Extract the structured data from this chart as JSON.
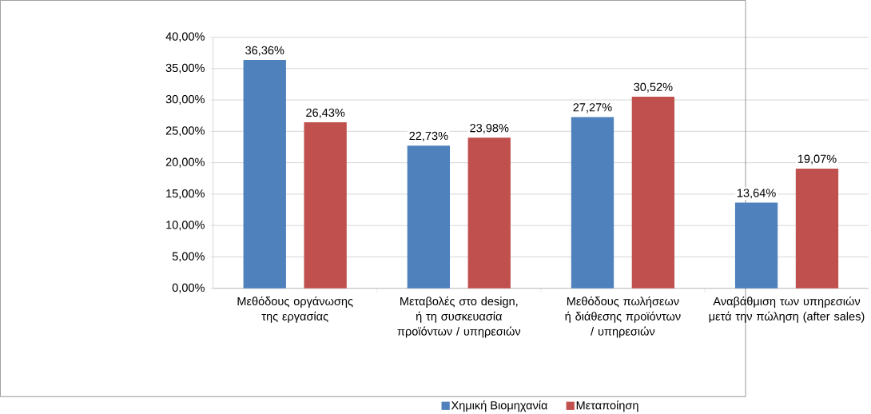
{
  "chart_data": {
    "type": "bar",
    "categories": [
      "Μεθόδους οργάνωσης της εργασίας",
      "Μεταβολές στο design, ή τη συσκευασία προϊόντων / υπηρεσιών",
      "Μεθόδους πωλήσεων ή διάθεσης προϊόντων / υπηρεσιών",
      "Αναβάθμιση των υπηρεσιών μετά την πώληση (after sales)"
    ],
    "series": [
      {
        "name": "Χημική Βιομηχανία",
        "color": "#4f81bd",
        "values": [
          36.36,
          22.73,
          27.27,
          13.64
        ],
        "value_labels": [
          "36,36%",
          "22,73%",
          "27,27%",
          "13,64%"
        ]
      },
      {
        "name": "Μεταποίηση",
        "color": "#c0504d",
        "values": [
          26.43,
          23.98,
          30.52,
          19.07
        ],
        "value_labels": [
          "26,43%",
          "23,98%",
          "30,52%",
          "19,07%"
        ]
      }
    ],
    "ylim": [
      0,
      40
    ],
    "yticks": [
      {
        "value": 0,
        "label": "0,00%"
      },
      {
        "value": 5,
        "label": "5,00%"
      },
      {
        "value": 10,
        "label": "10,00%"
      },
      {
        "value": 15,
        "label": "15,00%"
      },
      {
        "value": 20,
        "label": "20,00%"
      },
      {
        "value": 25,
        "label": "25,00%"
      },
      {
        "value": 30,
        "label": "30,00%"
      },
      {
        "value": 35,
        "label": "35,00%"
      },
      {
        "value": 40,
        "label": "40,00%"
      }
    ],
    "grid": "y",
    "legend": "bottom"
  }
}
